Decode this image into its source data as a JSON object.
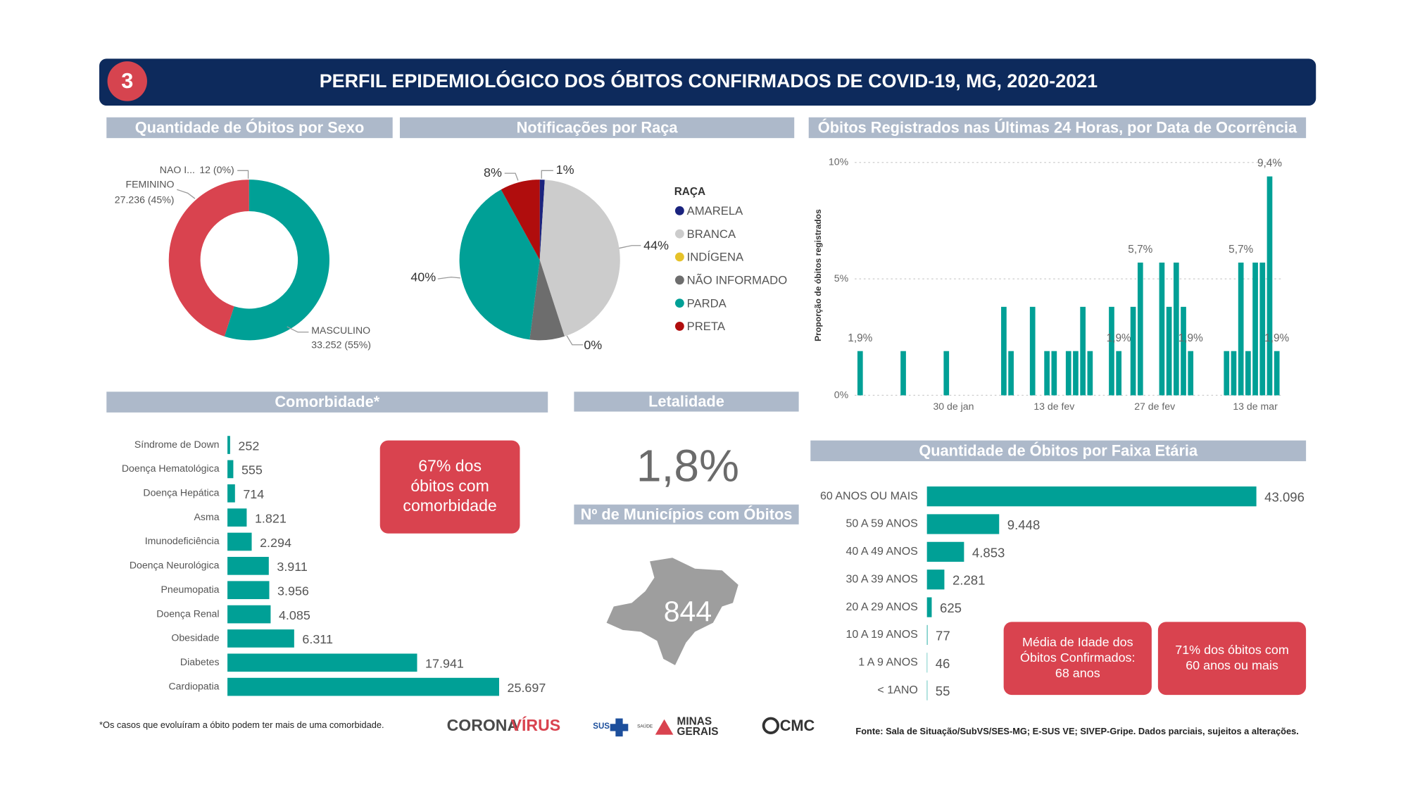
{
  "header": {
    "number": "3",
    "title": "PERFIL EPIDEMIOLÓGICO DOS ÓBITOS CONFIRMADOS DE COVID-19, MG, 2020-2021"
  },
  "chart_data": [
    {
      "type": "pie",
      "donut": true,
      "title": "Quantidade de Óbitos por Sexo",
      "categories": [
        "MASCULINO",
        "FEMININO",
        "NAO I..."
      ],
      "values": [
        33252,
        27236,
        12
      ],
      "value_labels": [
        "33.252 (55%)",
        "27.236 (45%)",
        "12 (0%)"
      ],
      "colors": [
        "#00a096",
        "#d9434f",
        "#333333"
      ]
    },
    {
      "type": "pie",
      "title": "Notificações por Raça",
      "legend_title": "RAÇA",
      "categories": [
        "AMARELA",
        "BRANCA",
        "INDÍGENA",
        "NÃO INFORMADO",
        "PARDA",
        "PRETA"
      ],
      "values": [
        1,
        44,
        0,
        7,
        40,
        8
      ],
      "value_labels": [
        "1%",
        "44%",
        "0%",
        null,
        "40%",
        "8%"
      ],
      "colors": [
        "#1a237e",
        "#cccccc",
        "#e6c229",
        "#6d6d6d",
        "#00a096",
        "#b00d0d"
      ]
    },
    {
      "type": "bar",
      "title": "Óbitos Registrados nas Últimas 24 Horas, por Data de Ocorrência",
      "ylabel": "Proporção de óbitos registrados",
      "categories": [
        null,
        null,
        null,
        null,
        null,
        null,
        null,
        null,
        null,
        null,
        null,
        null,
        null,
        "30 de jan",
        null,
        null,
        null,
        null,
        null,
        null,
        null,
        null,
        null,
        null,
        null,
        null,
        null,
        "13 de fev",
        null,
        null,
        null,
        null,
        null,
        null,
        null,
        null,
        null,
        null,
        null,
        null,
        null,
        "27 de fev",
        null,
        null,
        null,
        null,
        null,
        null,
        null,
        null,
        null,
        null,
        null,
        null,
        null,
        "13 de mar",
        null,
        null,
        null
      ],
      "values": [
        1.9,
        0,
        0,
        0,
        0,
        0,
        1.9,
        0,
        0,
        0,
        0,
        0,
        1.9,
        0,
        0,
        0,
        0,
        0,
        0,
        0,
        3.8,
        1.9,
        0,
        0,
        3.8,
        0,
        1.9,
        1.9,
        0,
        1.9,
        1.9,
        3.8,
        1.9,
        0,
        0,
        3.8,
        1.9,
        0,
        3.8,
        5.7,
        0,
        0,
        5.7,
        3.8,
        5.7,
        3.8,
        1.9,
        0,
        0,
        0,
        0,
        1.9,
        1.9,
        5.7,
        1.9,
        5.7,
        5.7,
        9.4,
        1.9
      ],
      "value_labels": [
        "1,9%",
        null,
        null,
        null,
        null,
        null,
        null,
        null,
        null,
        null,
        null,
        null,
        null,
        null,
        null,
        null,
        null,
        null,
        null,
        null,
        null,
        null,
        null,
        null,
        null,
        null,
        null,
        null,
        null,
        null,
        null,
        null,
        null,
        null,
        null,
        null,
        "1,9%",
        null,
        null,
        "5,7%",
        null,
        null,
        null,
        null,
        null,
        null,
        "1,9%",
        null,
        null,
        null,
        null,
        null,
        null,
        "5,7%",
        null,
        null,
        null,
        "9,4%",
        "1,9%"
      ],
      "color": "#00a096",
      "ylim": [
        0,
        10
      ],
      "yticks": [
        {
          "value": 0,
          "label": "0%"
        },
        {
          "value": 5,
          "label": "5%"
        },
        {
          "value": 10,
          "label": "10%"
        }
      ],
      "grid": true
    },
    {
      "type": "hbar",
      "title": "Comorbidade*",
      "categories": [
        "Síndrome de Down",
        "Doença Hematológica",
        "Doença Hepática",
        "Asma",
        "Imunodeficiência",
        "Doença Neurológica",
        "Pneumopatia",
        "Doença Renal",
        "Obesidade",
        "Diabetes",
        "Cardiopatia"
      ],
      "values": [
        252,
        555,
        714,
        1821,
        2294,
        3911,
        3956,
        4085,
        6311,
        17941,
        25697
      ],
      "value_labels": [
        "252",
        "555",
        "714",
        "1.821",
        "2.294",
        "3.911",
        "3.956",
        "4.085",
        "6.311",
        "17.941",
        "25.697"
      ],
      "color": "#00a096",
      "annotations": [
        [
          "67% dos",
          "óbitos com",
          "comorbidade"
        ]
      ],
      "note": "*Os casos que evoluíram a óbito podem ter mais de uma comorbidade."
    },
    {
      "type": "hbar",
      "title": "Quantidade de Óbitos por Faixa Etária",
      "categories": [
        "60 ANOS OU MAIS",
        "50 A 59 ANOS",
        "40 A 49 ANOS",
        "30 A 39 ANOS",
        "20 A 29 ANOS",
        "10 A 19 ANOS",
        "1 A 9 ANOS",
        "< 1ANO"
      ],
      "values": [
        43096,
        9448,
        4853,
        2281,
        625,
        77,
        46,
        55
      ],
      "value_labels": [
        "43.096",
        "9.448",
        "4.853",
        "2.281",
        "625",
        "77",
        "46",
        "55"
      ],
      "color": "#00a096",
      "annotations": [
        [
          "Média de Idade dos",
          "Óbitos Confirmados:",
          "68 anos"
        ],
        [
          "71% dos óbitos com",
          "60 anos ou mais"
        ]
      ]
    }
  ],
  "panels": {
    "letalidade": {
      "title": "Letalidade",
      "value": "1,8%"
    },
    "municipios": {
      "title": "Nº de Municípios com Óbitos",
      "value": "844"
    }
  },
  "footer": {
    "logos": {
      "corona": "CORONA",
      "virus": "VÍRUS",
      "sus": "SUS",
      "saude": "SAÚDE",
      "minas": "MINAS",
      "gerais": "GERAIS",
      "cmc": "CMC"
    },
    "source": "Fonte: Sala de Situação/SubVS/SES-MG; E-SUS VE; SIVEP-Gripe. Dados parciais, sujeitos a alterações."
  }
}
